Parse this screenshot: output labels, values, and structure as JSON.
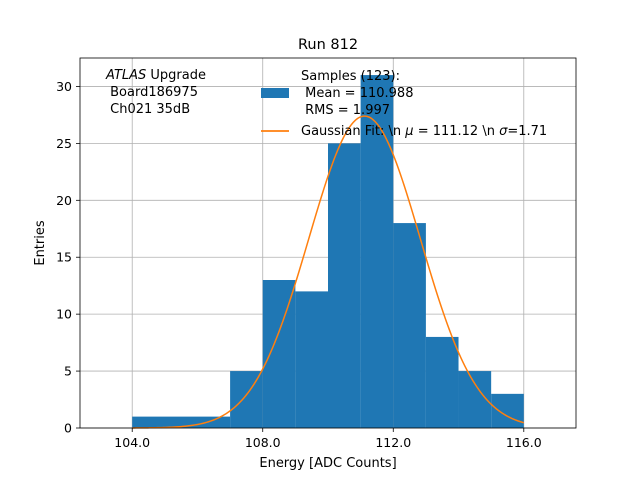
{
  "chart_data": {
    "type": "bar",
    "title": "Run 812",
    "xlabel": "Energy [ADC Counts]",
    "ylabel": "Entries",
    "xlim": [
      102.4,
      117.6
    ],
    "ylim": [
      0,
      32.5
    ],
    "xticks": [
      104.0,
      108.0,
      112.0,
      116.0
    ],
    "xtick_labels": [
      "104.0",
      "108.0",
      "112.0",
      "116.0"
    ],
    "yticks": [
      0,
      5,
      10,
      15,
      20,
      25,
      30
    ],
    "ytick_labels": [
      "0",
      "5",
      "10",
      "15",
      "20",
      "25",
      "30"
    ],
    "grid": true,
    "bar_color": "#1f77b4",
    "fit_color": "#ff7f0e",
    "histogram": {
      "bins": [
        {
          "x0": 104,
          "x1": 107,
          "count": 1
        },
        {
          "x0": 107,
          "x1": 108,
          "count": 5
        },
        {
          "x0": 108,
          "x1": 109,
          "count": 13
        },
        {
          "x0": 109,
          "x1": 110,
          "count": 12
        },
        {
          "x0": 110,
          "x1": 111,
          "count": 25
        },
        {
          "x0": 111,
          "x1": 112,
          "count": 31
        },
        {
          "x0": 112,
          "x1": 113,
          "count": 18
        },
        {
          "x0": 113,
          "x1": 114,
          "count": 8
        },
        {
          "x0": 114,
          "x1": 115,
          "count": 5
        },
        {
          "x0": 115,
          "x1": 116,
          "count": 3
        }
      ]
    },
    "fit": {
      "mu": 111.12,
      "sigma": 1.71,
      "amplitude": 27.4,
      "x_range": [
        104,
        116
      ]
    },
    "legend": {
      "location": "upper-right",
      "samples_lines": [
        "Samples (123):",
        " Mean = 110.988",
        " RMS = 1.997"
      ],
      "fit_label_parts": [
        "Gaussian Fit: \\n ",
        "μ",
        " = 111.12 \\n ",
        "σ",
        "=1.71"
      ]
    },
    "annotation": {
      "italic": "ATLAS",
      "rest": " Upgrade",
      "line2": " Board186975",
      "line3": " Ch021 35dB"
    }
  }
}
